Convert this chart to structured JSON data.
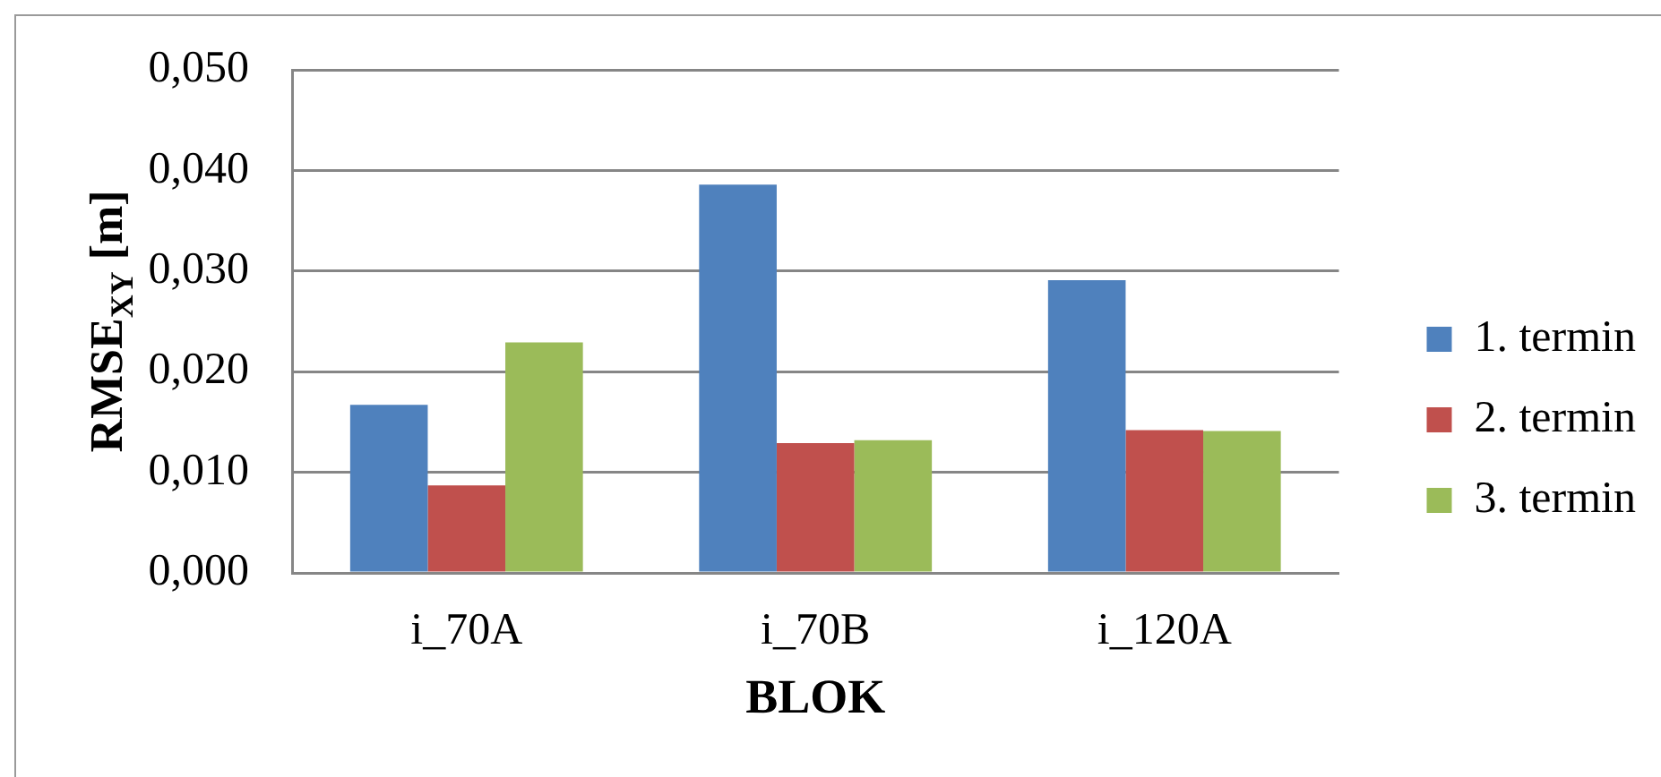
{
  "chart_data": {
    "type": "bar",
    "xlabel": "BLOK",
    "ylabel": "RMSE$_{XY}$ [m]",
    "categories": [
      "i_70A",
      "i_70B",
      "i_120A"
    ],
    "series": [
      {
        "name": "1. termin",
        "color": "#4f81bd",
        "values": [
          0.0167,
          0.0386,
          0.0291
        ]
      },
      {
        "name": "2. termin",
        "color": "#c0504d",
        "values": [
          0.0087,
          0.0129,
          0.0142
        ]
      },
      {
        "name": "3. termin",
        "color": "#9bbb59",
        "values": [
          0.0229,
          0.0132,
          0.0141
        ]
      }
    ],
    "ylim": [
      0,
      0.05
    ],
    "yticks": [
      {
        "value": 0,
        "label": "0,000"
      },
      {
        "value": 0.01,
        "label": "0,010"
      },
      {
        "value": 0.02,
        "label": "0,020"
      },
      {
        "value": 0.03,
        "label": "0,030"
      },
      {
        "value": 0.04,
        "label": "0,040"
      },
      {
        "value": 0.05,
        "label": "0,050"
      }
    ],
    "grid": "y",
    "legend": "right"
  }
}
